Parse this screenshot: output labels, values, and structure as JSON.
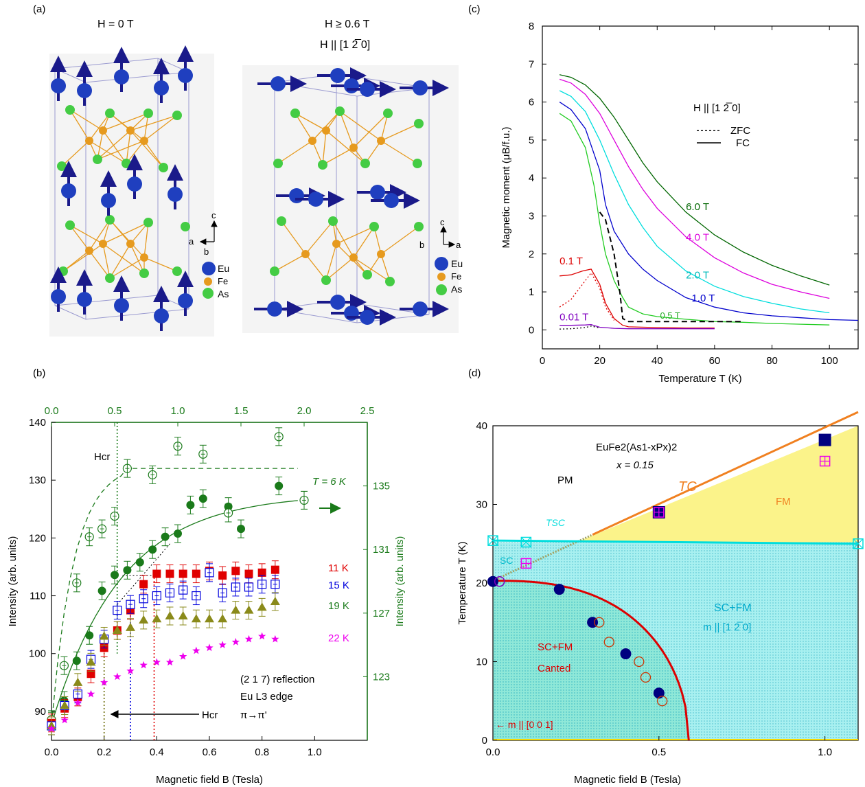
{
  "panels": {
    "a": {
      "tag": "(a)",
      "left_title": "H = 0 T",
      "right_title_1": "H ≥ 0.6 T",
      "right_title_2": "H || [1 2̅ 0]",
      "legend": [
        "Eu",
        "Fe",
        "As"
      ],
      "axes_left": {
        "c": "c",
        "a": "a",
        "b": "b"
      },
      "axes_right": {
        "c": "c",
        "a": "a",
        "b": "b"
      }
    },
    "b": {
      "tag": "(b)"
    },
    "c": {
      "tag": "(c)"
    },
    "d": {
      "tag": "(d)"
    }
  },
  "colors": {
    "eu": "#1f3fbf",
    "fe": "#e69a1e",
    "as": "#44cc44",
    "arrow": "#1a1a8a",
    "red": "#e00000",
    "blue": "#0000dd",
    "green": "#1a7a1a",
    "olive": "#8a8a1a",
    "magenta": "#ee00ee",
    "cyan": "#00dddd",
    "orange": "#f08020",
    "navy": "#000080",
    "violet": "#8000c0"
  },
  "chart_data": [
    {
      "id": "c",
      "type": "line",
      "xlabel": "Temperature T  (K)",
      "ylabel": "Magnetic moment (μB/f.u.)",
      "xlim": [
        0,
        110
      ],
      "ylim": [
        -0.5,
        8
      ],
      "xticks": [
        0,
        20,
        40,
        60,
        80,
        100
      ],
      "yticks": [
        0,
        1,
        2,
        3,
        4,
        5,
        6,
        7,
        8
      ],
      "legend_title": "H || [1 2̅ 0]",
      "legend": [
        {
          "style": "dashed",
          "label": "ZFC"
        },
        {
          "style": "solid",
          "label": "FC"
        }
      ],
      "series": [
        {
          "name": "6.0 T",
          "color": "#006600",
          "style": "solid",
          "x": [
            6,
            10,
            15,
            20,
            25,
            30,
            35,
            40,
            50,
            60,
            70,
            80,
            90,
            100
          ],
          "y": [
            6.72,
            6.65,
            6.45,
            6.1,
            5.6,
            5.0,
            4.4,
            3.9,
            3.1,
            2.5,
            2.05,
            1.7,
            1.42,
            1.18
          ]
        },
        {
          "name": "4.0 T",
          "color": "#dd00dd",
          "style": "solid",
          "x": [
            6,
            10,
            15,
            20,
            25,
            30,
            35,
            40,
            50,
            60,
            70,
            80,
            90,
            100
          ],
          "y": [
            6.6,
            6.5,
            6.2,
            5.7,
            5.0,
            4.3,
            3.7,
            3.2,
            2.45,
            1.9,
            1.5,
            1.2,
            1.0,
            0.83
          ]
        },
        {
          "name": "2.0 T",
          "color": "#00dddd",
          "style": "solid",
          "x": [
            6,
            10,
            15,
            20,
            25,
            30,
            35,
            40,
            50,
            60,
            70,
            80,
            90,
            100
          ],
          "y": [
            6.3,
            6.15,
            5.75,
            5.0,
            4.1,
            3.3,
            2.7,
            2.2,
            1.55,
            1.15,
            0.88,
            0.7,
            0.55,
            0.45
          ]
        },
        {
          "name": "1.0 T",
          "color": "#0000cc",
          "style": "solid",
          "x": [
            6,
            10,
            15,
            20,
            22,
            25,
            30,
            35,
            40,
            50,
            60,
            70,
            80,
            90,
            100,
            110
          ],
          "y": [
            6.0,
            5.8,
            5.3,
            4.2,
            3.3,
            2.6,
            2.0,
            1.6,
            1.3,
            0.85,
            0.6,
            0.45,
            0.37,
            0.32,
            0.27,
            0.25
          ]
        },
        {
          "name": "0.5 T",
          "color": "#22cc22",
          "style": "solid",
          "x": [
            6,
            10,
            15,
            18,
            20,
            22,
            25,
            28,
            30,
            35,
            40,
            50,
            60,
            70,
            80,
            90,
            100
          ],
          "y": [
            5.7,
            5.5,
            4.8,
            3.8,
            2.8,
            2.0,
            1.3,
            0.85,
            0.6,
            0.42,
            0.35,
            0.28,
            0.22,
            0.2,
            0.17,
            0.15,
            0.13
          ]
        },
        {
          "name": "0.5 T ZFC",
          "color": "#000000",
          "style": "dashed",
          "x": [
            20,
            22,
            25,
            27,
            28,
            30,
            40,
            50,
            60,
            70
          ],
          "y": [
            3.1,
            2.9,
            2.0,
            1.0,
            0.3,
            0.22,
            0.22,
            0.22,
            0.22,
            0.22
          ]
        },
        {
          "name": "0.1 T",
          "color": "#dd0000",
          "style": "solid",
          "x": [
            6,
            10,
            14,
            17,
            20,
            22,
            25,
            28,
            30,
            40,
            50,
            60
          ],
          "y": [
            1.42,
            1.45,
            1.55,
            1.6,
            1.2,
            0.7,
            0.3,
            0.12,
            0.08,
            0.06,
            0.05,
            0.05
          ]
        },
        {
          "name": "0.1 T ZFC",
          "color": "#dd0000",
          "style": "dotted",
          "x": [
            6,
            10,
            14,
            17,
            20,
            22,
            25
          ],
          "y": [
            0.6,
            0.8,
            1.2,
            1.5,
            1.1,
            0.6,
            0.25
          ]
        },
        {
          "name": "0.01 T",
          "color": "#8000c0",
          "style": "solid",
          "x": [
            6,
            10,
            15,
            17,
            20,
            25,
            30,
            40,
            50,
            60
          ],
          "y": [
            0.12,
            0.12,
            0.13,
            0.14,
            0.07,
            0.04,
            0.03,
            0.03,
            0.03,
            0.03
          ]
        },
        {
          "name": "0.01 T ZFC",
          "color": "#000000",
          "style": "dotted",
          "x": [
            6,
            10,
            15,
            17,
            20
          ],
          "y": [
            0.02,
            0.03,
            0.06,
            0.1,
            0.05
          ]
        }
      ],
      "labels": [
        {
          "text": "6.0 T",
          "x": 50,
          "y": 3.15,
          "color": "#006600"
        },
        {
          "text": "4.0 T",
          "x": 50,
          "y": 2.35,
          "color": "#dd00dd"
        },
        {
          "text": "2.0 T",
          "x": 50,
          "y": 1.35,
          "color": "#00bbbb"
        },
        {
          "text": "1.0 T",
          "x": 52,
          "y": 0.75,
          "color": "#0000cc"
        },
        {
          "text": "0.5 T",
          "x": 41,
          "y": 0.3,
          "color": "#22aa22"
        },
        {
          "text": "0.1 T",
          "x": 6,
          "y": 1.72,
          "color": "#dd0000"
        },
        {
          "text": "0.01 T",
          "x": 6,
          "y": 0.25,
          "color": "#8000c0"
        }
      ]
    },
    {
      "id": "b",
      "type": "scatter",
      "xlabel": "Magnetic field B (Tesla)",
      "ylabel": "Intensity (arb. units)",
      "y2label": "Intensity (arb. units)",
      "xlim": [
        0,
        1.2
      ],
      "ylim": [
        85,
        140
      ],
      "xticks": [
        0.0,
        0.2,
        0.4,
        0.6,
        0.8,
        1.0
      ],
      "yticks": [
        90,
        100,
        110,
        120,
        130,
        140
      ],
      "x2lim": [
        0,
        2.5
      ],
      "x2ticks": [
        "0.0",
        "0.5",
        "1.0",
        "1.5",
        "2.0",
        "2.5"
      ],
      "y2lim": [
        119,
        139
      ],
      "y2ticks": [
        123,
        127,
        131,
        135
      ],
      "series": [
        {
          "name": "T = 6 K",
          "color": "#1a7a1a",
          "marker": "circle-filled",
          "axis": "top-right",
          "x": [
            0.0,
            0.1,
            0.2,
            0.3,
            0.4,
            0.5,
            0.6,
            0.7,
            0.8,
            0.9,
            1.0,
            1.1,
            1.2,
            1.4,
            1.5,
            1.8,
            2.0
          ],
          "y": [
            120.2,
            121.5,
            124.0,
            125.6,
            128.4,
            129.4,
            129.7,
            130.2,
            131.0,
            131.8,
            132.0,
            133.8,
            134.2,
            133.7,
            132.3,
            135.0,
            134.1
          ]
        },
        {
          "name": "T = 6 K open",
          "color": "#1a7a1a",
          "marker": "circle-open",
          "axis": "top-right",
          "x": [
            0.0,
            0.1,
            0.2,
            0.3,
            0.4,
            0.5,
            0.6,
            0.8,
            1.0,
            1.2,
            1.4,
            1.8,
            2.0
          ],
          "y": [
            120.3,
            123.7,
            128.9,
            131.8,
            132.3,
            133.1,
            136.1,
            135.7,
            137.5,
            137.0,
            133.3,
            138.1,
            134.1
          ]
        },
        {
          "name": "11 K",
          "color": "#e00000",
          "marker": "square-filled",
          "x": [
            0.0,
            0.05,
            0.1,
            0.15,
            0.2,
            0.25,
            0.3,
            0.35,
            0.4,
            0.45,
            0.5,
            0.55,
            0.6,
            0.65,
            0.7,
            0.75,
            0.8,
            0.85
          ],
          "y": [
            88,
            90.5,
            92.5,
            96.5,
            101.0,
            104.0,
            107.5,
            112.0,
            113.8,
            113.8,
            113.8,
            113.8,
            114.3,
            113.5,
            114.3,
            113.8,
            114.0,
            114.5
          ]
        },
        {
          "name": "15 K",
          "color": "#0000dd",
          "marker": "square-open",
          "x": [
            0.0,
            0.05,
            0.1,
            0.15,
            0.2,
            0.25,
            0.3,
            0.35,
            0.4,
            0.45,
            0.5,
            0.55,
            0.6,
            0.65,
            0.7,
            0.75,
            0.8,
            0.85
          ],
          "y": [
            87.5,
            91.0,
            93.0,
            99.0,
            102.5,
            107.5,
            108.5,
            109.5,
            110.0,
            110.5,
            111.0,
            110.0,
            114.0,
            110.5,
            111.5,
            111.5,
            112.0,
            112.0
          ]
        },
        {
          "name": "19 K",
          "color": "#8a8a1a",
          "marker": "triangle",
          "x": [
            0.0,
            0.05,
            0.1,
            0.15,
            0.2,
            0.25,
            0.3,
            0.35,
            0.4,
            0.45,
            0.5,
            0.55,
            0.6,
            0.65,
            0.7,
            0.75,
            0.8,
            0.85
          ],
          "y": [
            87.5,
            91.0,
            95.0,
            98.5,
            103.0,
            104.0,
            104.5,
            105.8,
            106.0,
            106.5,
            106.5,
            106.0,
            106.0,
            106.0,
            107.5,
            107.5,
            108.0,
            109.0
          ]
        },
        {
          "name": "22 K",
          "color": "#ee00ee",
          "marker": "star",
          "x": [
            0.0,
            0.05,
            0.1,
            0.15,
            0.2,
            0.25,
            0.3,
            0.35,
            0.4,
            0.45,
            0.5,
            0.55,
            0.6,
            0.65,
            0.7,
            0.75,
            0.8,
            0.85
          ],
          "y": [
            87.0,
            88.5,
            91.5,
            93.0,
            95.0,
            96.0,
            97.0,
            98.0,
            98.5,
            98.5,
            99.5,
            100.5,
            101.0,
            101.5,
            102.0,
            102.5,
            103.0,
            102.5
          ]
        }
      ],
      "labels": {
        "t6": "T = 6 K",
        "k11": "11 K",
        "k15": "15 K",
        "k19": "19 K",
        "k22": "22 K",
        "hcr_top": "Hcr",
        "hcr_bottom": "Hcr",
        "refl": "(2 1 7) reflection",
        "edge": "Eu L3 edge",
        "pol": "π→π'"
      }
    },
    {
      "id": "d",
      "type": "scatter",
      "xlabel": "Magnetic field B (Tesla)",
      "ylabel": "Temperature T (K)",
      "xlim": [
        0,
        1.1
      ],
      "ylim": [
        0,
        40
      ],
      "xticks": [
        0.0,
        0.5,
        1.0
      ],
      "yticks": [
        0,
        10,
        20,
        30,
        40
      ],
      "labels": {
        "compound": "EuFe2(As1-xPx)2",
        "x": "x = 0.15",
        "pm": "PM",
        "tc": "TC",
        "fm": "FM",
        "tsc": "TSC",
        "sc": "SC",
        "scfm": "SC+FM",
        "mdir": "m || [1 2̅ 0]",
        "scfm2": "SC+FM",
        "canted": "Canted",
        "m001": "← m || [0 0 1]"
      },
      "series": [
        {
          "name": "filled circles",
          "color": "#000080",
          "x": [
            0.0,
            0.2,
            0.3,
            0.4,
            0.5
          ],
          "y": [
            20.2,
            19.2,
            15.0,
            11.0,
            6.0
          ]
        },
        {
          "name": "open circles",
          "color": "#cc3300",
          "x": [
            0.32,
            0.35,
            0.44,
            0.46,
            0.51
          ],
          "y": [
            15.0,
            12.5,
            10.0,
            8.0,
            5.0
          ]
        },
        {
          "name": "Tc squares",
          "color": "#000080",
          "x": [
            0.5,
            1.0
          ],
          "y": [
            29.0,
            38.2
          ]
        },
        {
          "name": "Tc open squares",
          "color": "#ee00ee",
          "x": [
            0.1,
            0.5,
            1.0
          ],
          "y": [
            22.5,
            29.0,
            35.5
          ]
        },
        {
          "name": "TSC",
          "color": "#00dddd",
          "x": [
            0.0,
            0.1,
            1.1
          ],
          "y": [
            25.4,
            25.2,
            25.0
          ]
        }
      ]
    }
  ]
}
